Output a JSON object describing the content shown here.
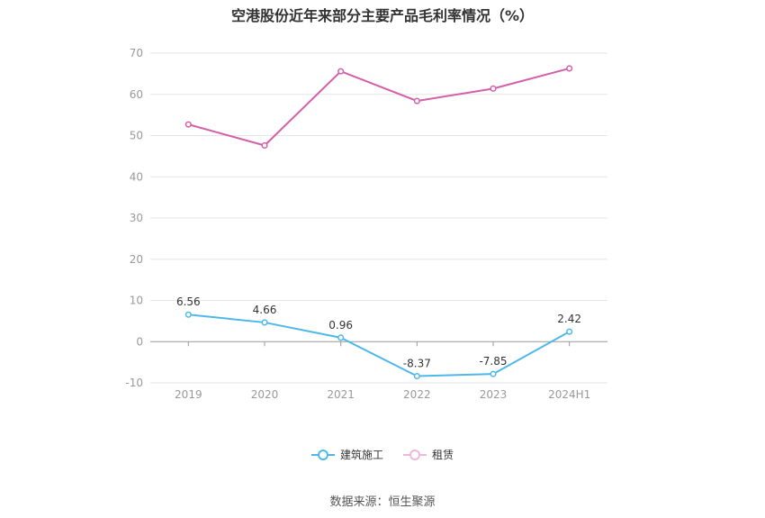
{
  "chart_data": {
    "type": "line",
    "title": "空港股份近年来部分主要产品毛利率情况（%）",
    "categories": [
      "2019",
      "2020",
      "2021",
      "2022",
      "2023",
      "2024H1"
    ],
    "ylim": [
      -10,
      70
    ],
    "yticks": [
      70,
      60,
      50,
      40,
      30,
      20,
      10,
      0,
      -10
    ],
    "grid": true,
    "legend_position": "bottom",
    "series": [
      {
        "name": "建筑施工",
        "color": "#4fb8ea",
        "values": [
          6.56,
          4.66,
          0.96,
          -8.37,
          -7.85,
          2.42
        ],
        "labels": [
          "6.56",
          "4.66",
          "0.96",
          "-8.37",
          "-7.85",
          "2.42"
        ]
      },
      {
        "name": "租赁",
        "color": "#d35fa8",
        "values": [
          52.7,
          47.6,
          65.6,
          58.4,
          61.4,
          66.3
        ]
      }
    ]
  },
  "legend": {
    "item_1": "建筑施工",
    "item_2": "租赁"
  },
  "source": "数据来源：恒生聚源"
}
